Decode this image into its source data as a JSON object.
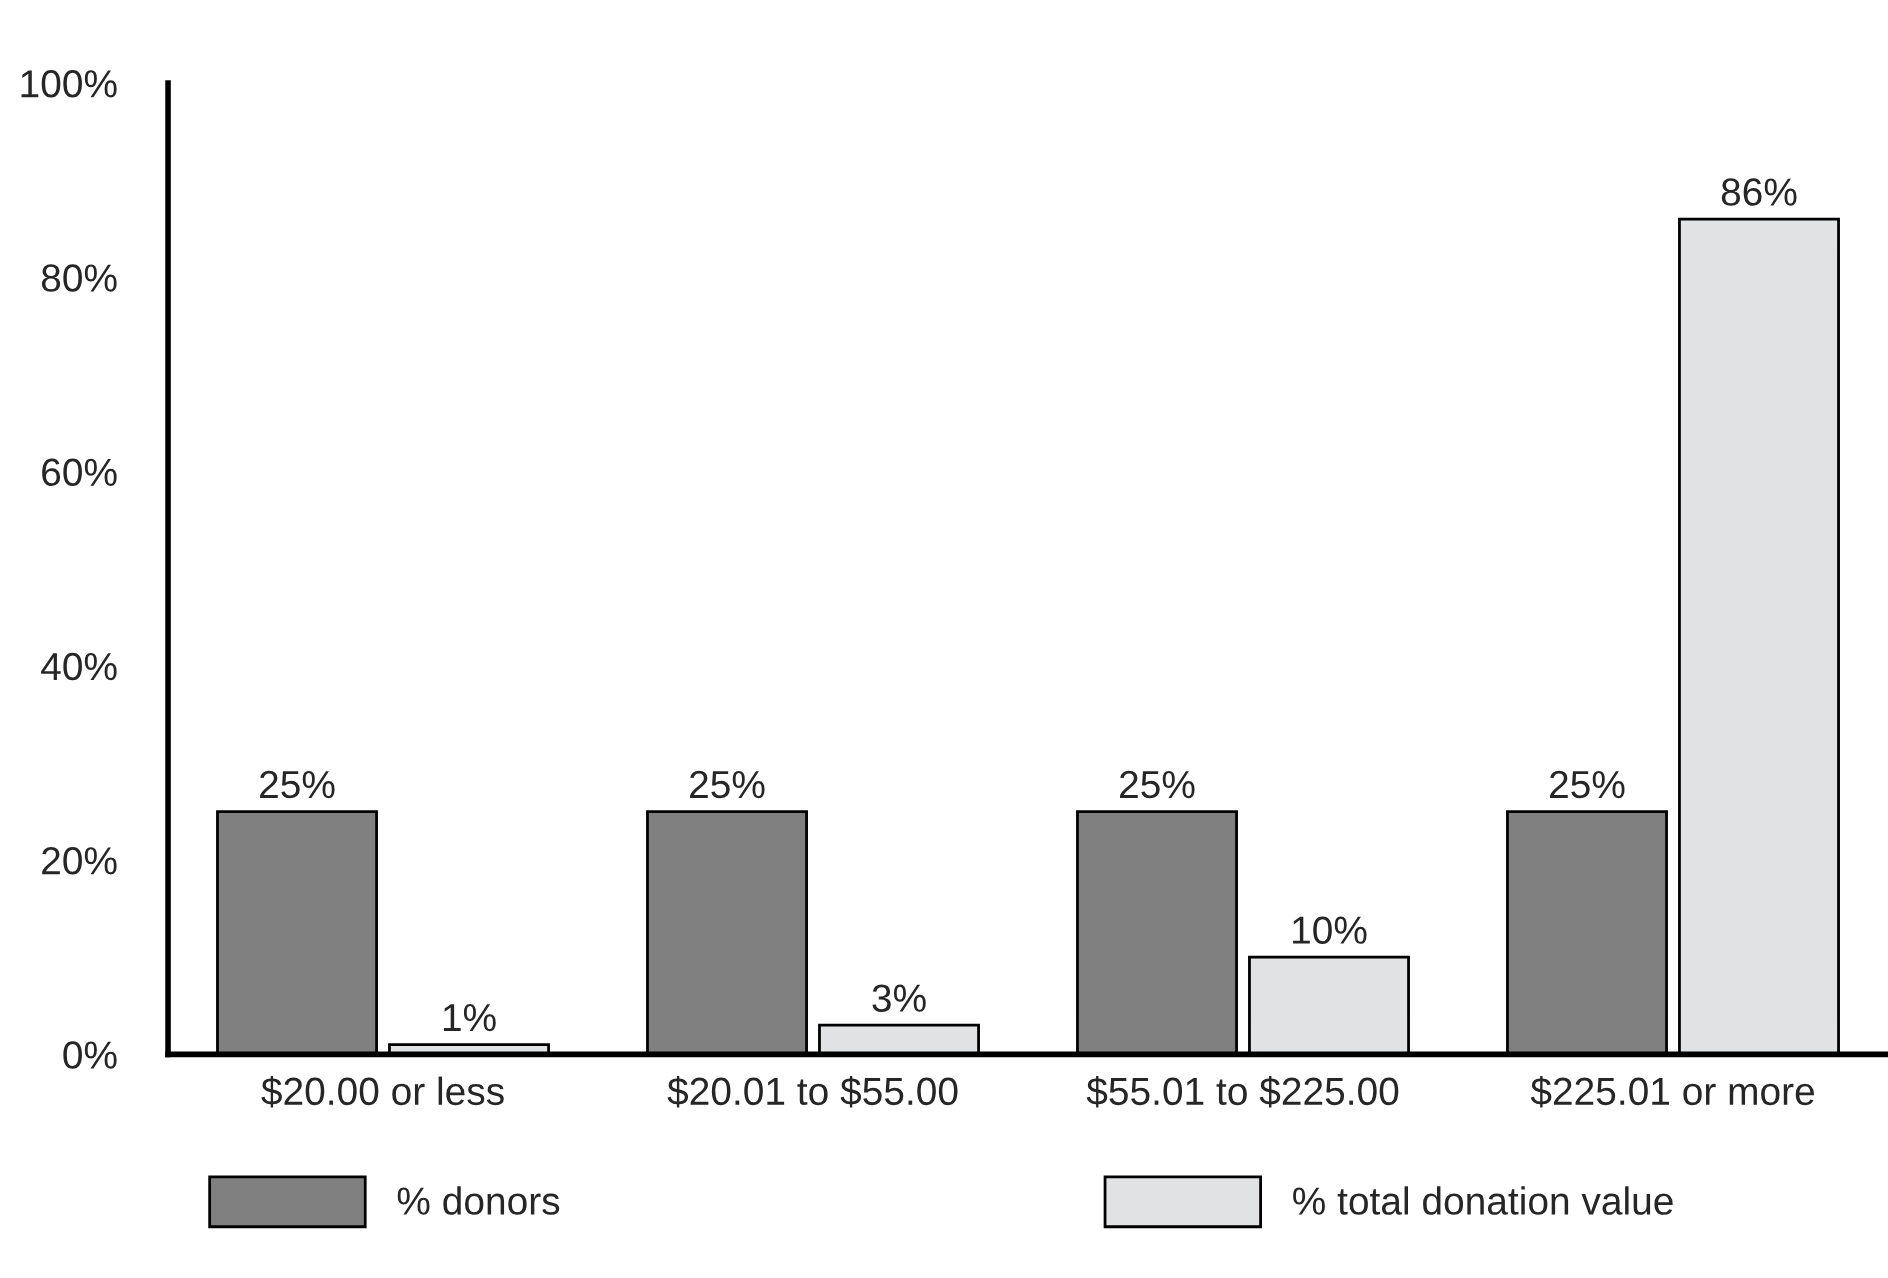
{
  "chart_data": {
    "type": "bar",
    "categories": [
      "$20.00 or less",
      "$20.01 to $55.00",
      "$55.01 to $225.00",
      "$225.01 or more"
    ],
    "series": [
      {
        "name": "% donors",
        "color": "#808080",
        "values": [
          25,
          25,
          25,
          25
        ],
        "value_labels": [
          "25%",
          "25%",
          "25%",
          "25%"
        ]
      },
      {
        "name": "% total donation value",
        "color": "#e1e2e4",
        "values": [
          1,
          3,
          10,
          86
        ],
        "value_labels": [
          "1%",
          "3%",
          "10%",
          "86%"
        ]
      }
    ],
    "ylim": [
      0,
      100
    ],
    "yticks": [
      {
        "value": 0,
        "label": "0%"
      },
      {
        "value": 20,
        "label": "20%"
      },
      {
        "value": 40,
        "label": "40%"
      },
      {
        "value": 60,
        "label": "60%"
      },
      {
        "value": 80,
        "label": "80%"
      },
      {
        "value": 100,
        "label": "100%"
      }
    ],
    "grid": false,
    "legend": "bottom"
  }
}
